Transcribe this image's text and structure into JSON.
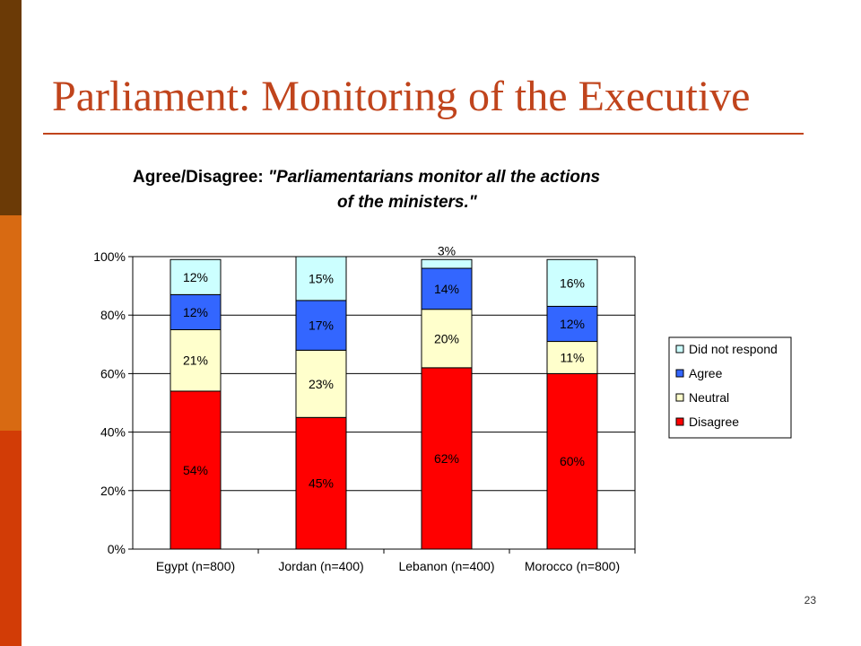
{
  "slide": {
    "title": "Parliament: Monitoring of the Executive",
    "page_number": "23"
  },
  "heading": {
    "label": "Agree/Disagree:",
    "quote_line1": "\"Parliamentarians monitor all the actions",
    "quote_line2": "of the ministers.\""
  },
  "colors": {
    "accent": "#c0441c",
    "sidebar": [
      "#6b3a06",
      "#d86a12",
      "#d23c06"
    ]
  },
  "chart_data": {
    "type": "bar",
    "stacked": true,
    "categories": [
      "Egypt (n=800)",
      "Jordan (n=400)",
      "Lebanon (n=400)",
      "Morocco (n=800)"
    ],
    "series": [
      {
        "name": "Disagree",
        "color": "#ff0000",
        "values": [
          54,
          45,
          62,
          60
        ],
        "labels": [
          "54%",
          "45%",
          "62%",
          "60%"
        ]
      },
      {
        "name": "Neutral",
        "color": "#ffffcc",
        "values": [
          21,
          23,
          20,
          11
        ],
        "labels": [
          "21%",
          "23%",
          "20%",
          "11%"
        ]
      },
      {
        "name": "Agree",
        "color": "#3366ff",
        "values": [
          12,
          17,
          14,
          12
        ],
        "labels": [
          "12%",
          "17%",
          "14%",
          "12%"
        ]
      },
      {
        "name": "Did not respond",
        "color": "#ccffff",
        "values": [
          12,
          15,
          3,
          16
        ],
        "labels": [
          "12%",
          "15%",
          "3%",
          "16%"
        ]
      }
    ],
    "ylim": [
      0,
      100
    ],
    "yticks": [
      "0%",
      "20%",
      "40%",
      "60%",
      "80%",
      "100%"
    ],
    "grid": true,
    "legend": "right"
  }
}
